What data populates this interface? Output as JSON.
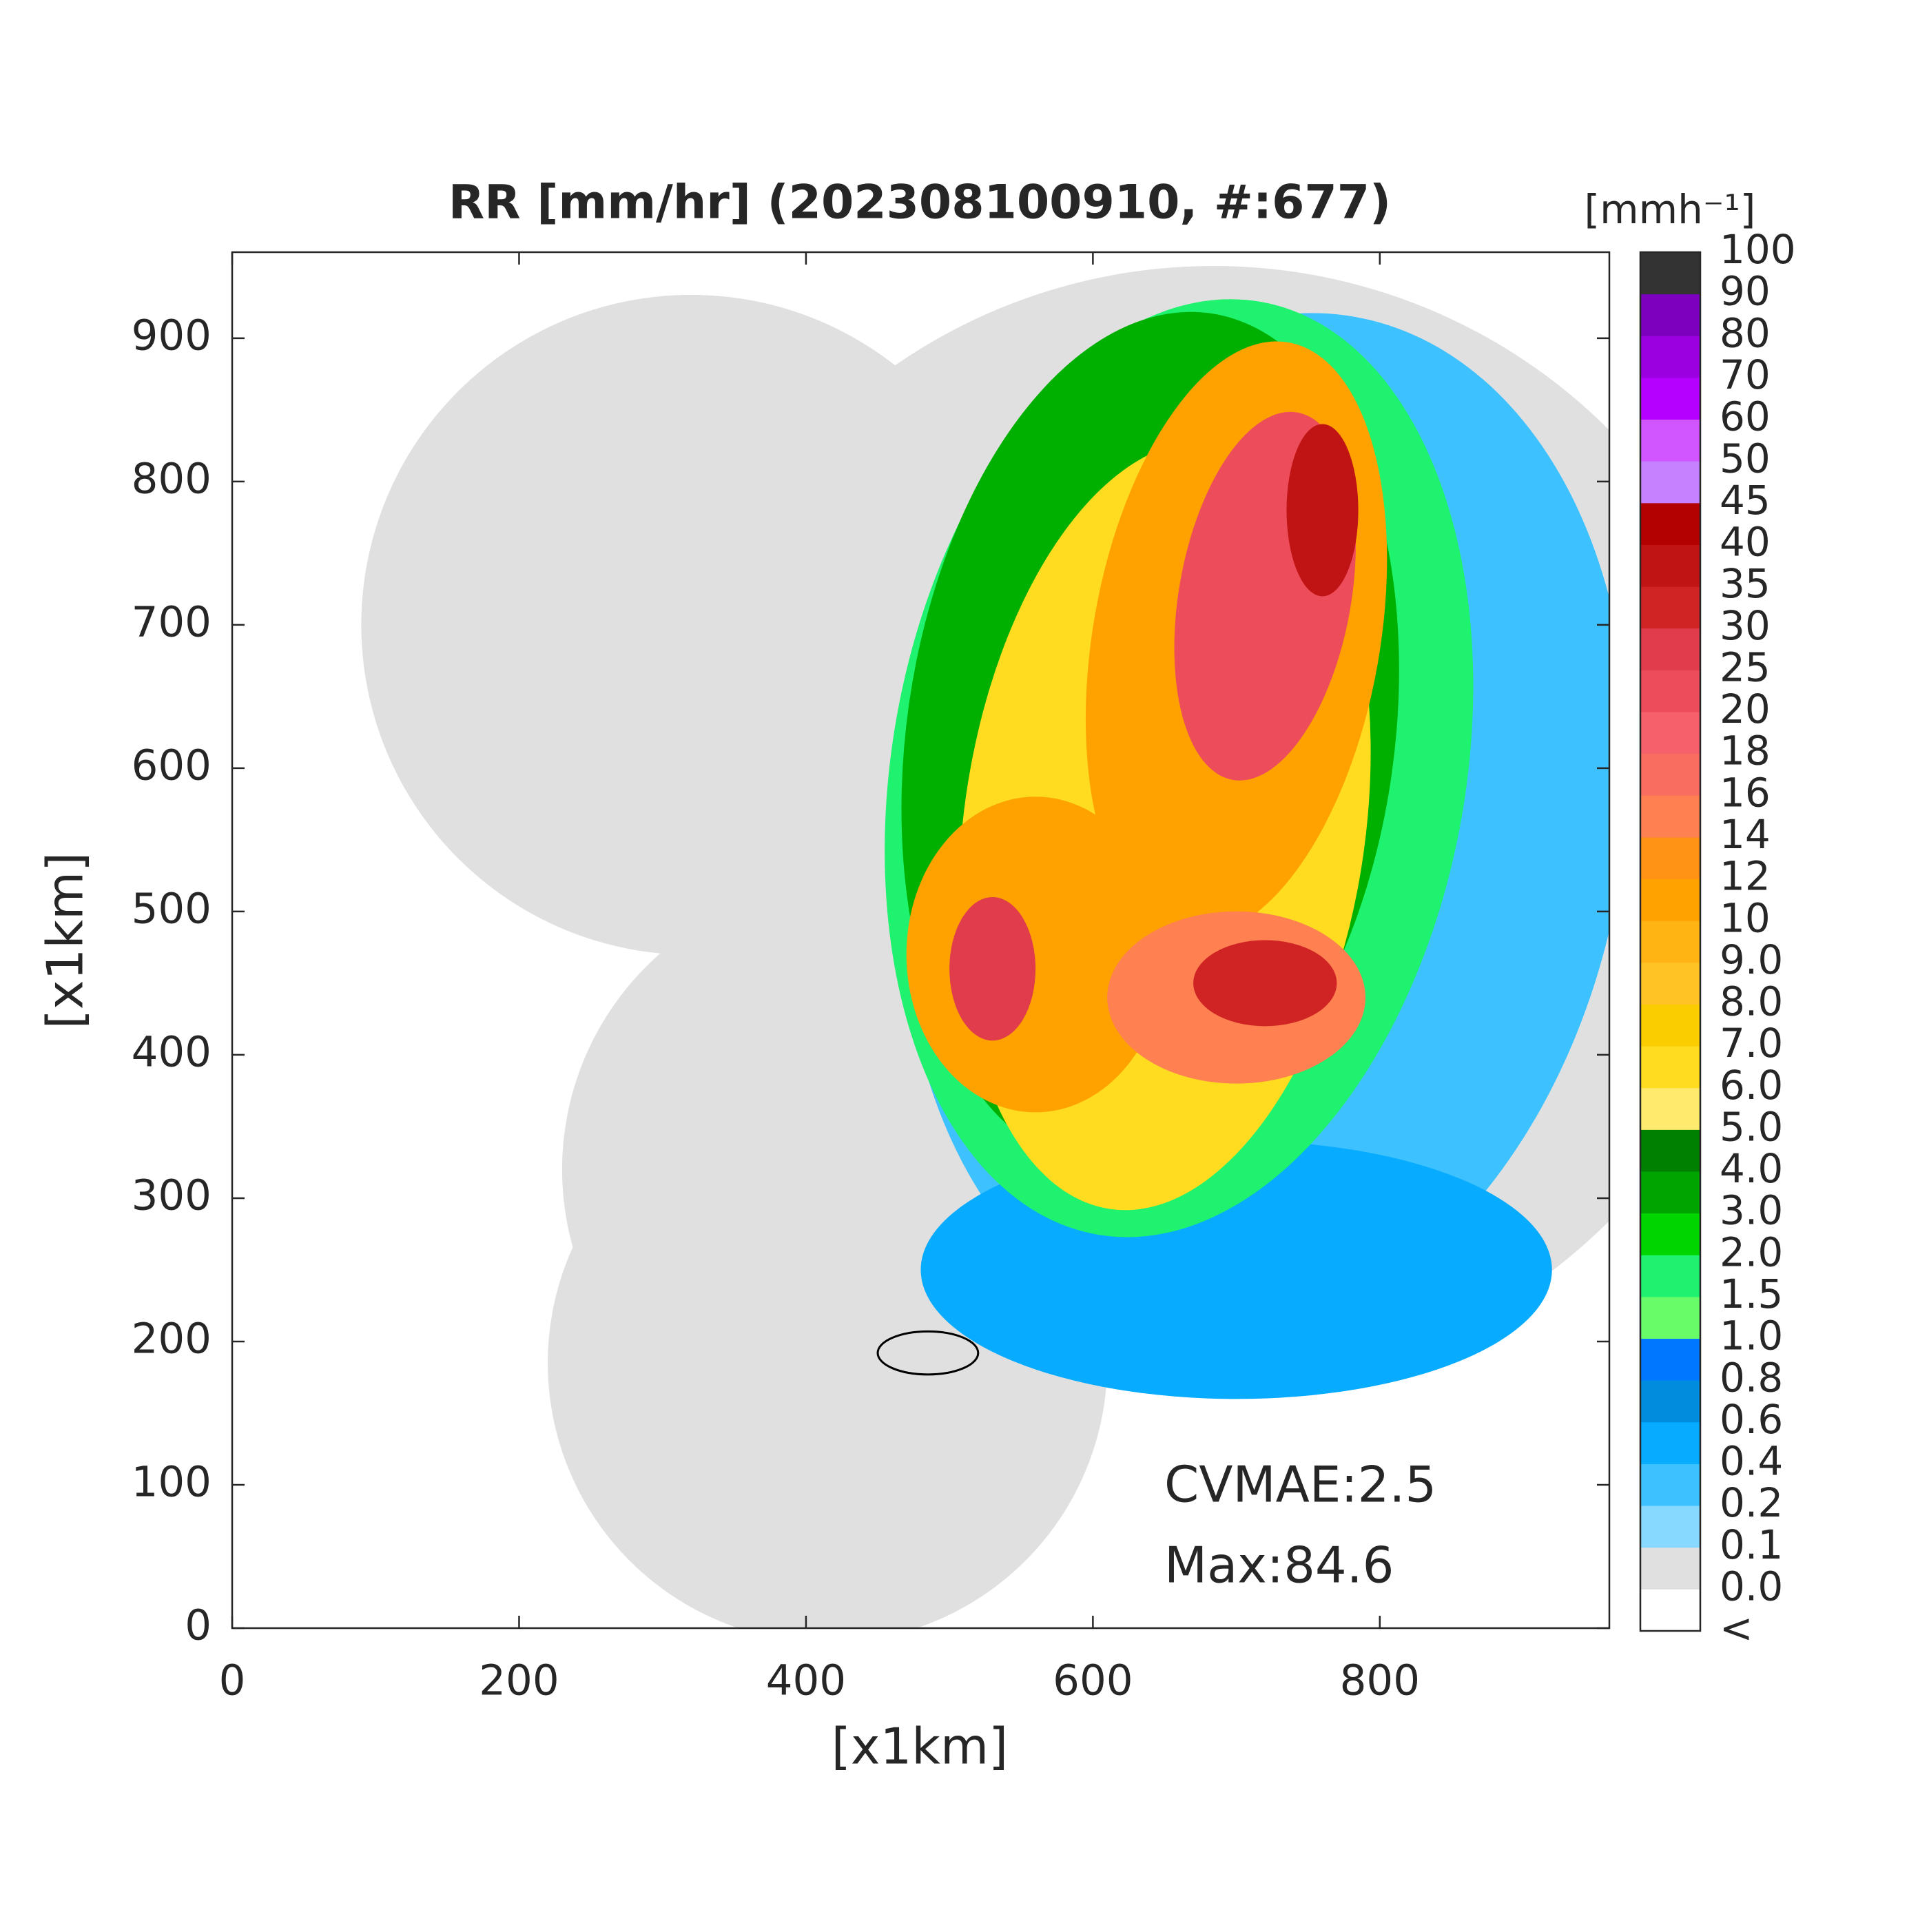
{
  "chart_data": {
    "type": "radar-map",
    "title": "RR [mm/hr] (202308100910, #:677)",
    "xlabel": "[x1km]",
    "ylabel": "[x1km]",
    "xlim": [
      0,
      960
    ],
    "ylim": [
      0,
      960
    ],
    "xticks": [
      0,
      200,
      400,
      600,
      800
    ],
    "yticks": [
      0,
      100,
      200,
      300,
      400,
      500,
      600,
      700,
      800,
      900
    ],
    "annotations": [
      "CVMAE:2.5",
      "Max:84.6"
    ],
    "colorbar": {
      "label": "[mmh⁻¹]",
      "tick_labels": [
        "<",
        "0.0",
        "0.1",
        "0.2",
        "0.4",
        "0.6",
        "0.8",
        "1.0",
        "1.5",
        "2.0",
        "3.0",
        "4.0",
        "5.0",
        "6.0",
        "7.0",
        "8.0",
        "9.0",
        "10",
        "12",
        "14",
        "16",
        "18",
        "20",
        "25",
        "30",
        "35",
        "40",
        "45",
        "50",
        "60",
        "70",
        "80",
        "90",
        "100"
      ],
      "colors": [
        "#ffffff",
        "#e0e0e0",
        "#87d9ff",
        "#3ec1ff",
        "#07abff",
        "#008dde",
        "#0077ff",
        "#69fc69",
        "#1ef26e",
        "#00d500",
        "#00a400",
        "#008000",
        "#ffea6e",
        "#ffdc1f",
        "#f9cd00",
        "#ffc326",
        "#ffb414",
        "#ffa200",
        "#ff9315",
        "#ff8050",
        "#f86d60",
        "#f6606a",
        "#ed4c5a",
        "#e03c4c",
        "#d02424",
        "#c01414",
        "#b30000",
        "#c581ff",
        "#d156ff",
        "#b500ff",
        "#9a00e0",
        "#7e00bf",
        "#333333"
      ]
    }
  }
}
